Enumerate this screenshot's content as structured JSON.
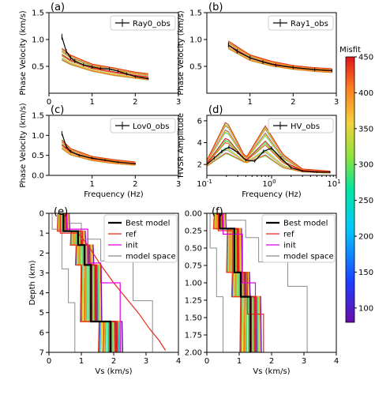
{
  "chart_data": [
    {
      "panel": "(a)",
      "type": "line",
      "xlabel": "",
      "ylabel": "Phase Velocity (km/s)",
      "xlim": [
        0,
        3
      ],
      "ylim": [
        0,
        1.5
      ],
      "xticks": [
        0,
        1,
        2,
        3
      ],
      "yticks": [
        0.5,
        1.0,
        1.5
      ],
      "legend": {
        "label": "Ray0_obs",
        "placement": "top-right"
      },
      "observed": {
        "name": "Ray0_obs",
        "x": [
          0.3,
          0.4,
          0.5,
          0.6,
          0.8,
          1.0,
          1.2,
          1.4,
          1.6,
          1.8,
          2.0,
          2.3
        ],
        "y": [
          1.05,
          0.78,
          0.66,
          0.6,
          0.53,
          0.49,
          0.46,
          0.45,
          0.41,
          0.36,
          0.31,
          0.27
        ]
      },
      "ensemble_range": {
        "x": [
          0.3,
          0.5,
          1.0,
          1.5,
          2.0,
          2.3
        ],
        "low": [
          0.6,
          0.52,
          0.4,
          0.32,
          0.27,
          0.24
        ],
        "high": [
          0.85,
          0.72,
          0.55,
          0.48,
          0.4,
          0.37
        ]
      }
    },
    {
      "panel": "(b)",
      "type": "line",
      "xlabel": "",
      "ylabel": "Phase Velocity (km/s)",
      "xlim": [
        0,
        3
      ],
      "ylim": [
        0,
        1.5
      ],
      "xticks": [
        1,
        2,
        3
      ],
      "yticks": [
        0.5,
        1.0,
        1.5
      ],
      "legend": {
        "label": "Ray1_obs",
        "placement": "top-right"
      },
      "observed": {
        "name": "Ray1_obs",
        "x": [
          0.5,
          0.7,
          1.0,
          1.3,
          1.6,
          2.0,
          2.5,
          2.9
        ],
        "y": [
          0.9,
          0.78,
          0.66,
          0.58,
          0.52,
          0.48,
          0.44,
          0.42
        ]
      },
      "ensemble_range": {
        "x": [
          0.5,
          1.0,
          1.5,
          2.0,
          2.5,
          2.9
        ],
        "low": [
          0.82,
          0.6,
          0.5,
          0.44,
          0.4,
          0.38
        ],
        "high": [
          0.98,
          0.72,
          0.6,
          0.52,
          0.48,
          0.46
        ]
      }
    },
    {
      "panel": "(c)",
      "type": "line",
      "xlabel": "Frequency (Hz)",
      "ylabel": "Phase Velocity (km/s)",
      "xlim": [
        0,
        3
      ],
      "ylim": [
        0,
        1.5
      ],
      "xticks": [
        1,
        2,
        3
      ],
      "yticks": [
        0.0,
        0.5,
        1.0,
        1.5
      ],
      "legend": {
        "label": "Lov0_obs",
        "placement": "top-right"
      },
      "observed": {
        "name": "Lov0_obs",
        "x": [
          0.3,
          0.4,
          0.5,
          0.7,
          1.0,
          1.3,
          1.6,
          2.0
        ],
        "y": [
          1.05,
          0.72,
          0.6,
          0.5,
          0.43,
          0.38,
          0.33,
          0.29
        ]
      },
      "ensemble_range": {
        "x": [
          0.3,
          0.5,
          1.0,
          1.5,
          2.0
        ],
        "low": [
          0.65,
          0.5,
          0.36,
          0.29,
          0.25
        ],
        "high": [
          0.9,
          0.68,
          0.48,
          0.4,
          0.34
        ]
      }
    },
    {
      "panel": "(d)",
      "type": "line",
      "xlabel": "Frequency (Hz)",
      "ylabel": "HVSR Amplitude",
      "xscale": "log",
      "xlim": [
        0.1,
        10
      ],
      "ylim": [
        1,
        6.5
      ],
      "xtick_labels": [
        "10^-1",
        "10^0",
        "10^1"
      ],
      "yticks": [
        2,
        4,
        6
      ],
      "legend": {
        "label": "HV_obs",
        "placement": "top-right"
      },
      "observed": {
        "name": "HV_obs",
        "x": [
          0.1,
          0.13,
          0.17,
          0.22,
          0.3,
          0.4,
          0.55,
          0.75,
          1.0,
          1.4,
          2.0,
          3.0,
          5.0,
          8.0
        ],
        "y": [
          2.0,
          2.6,
          3.2,
          3.6,
          3.1,
          2.4,
          2.3,
          3.2,
          3.5,
          2.6,
          1.7,
          1.4,
          1.3,
          1.3
        ]
      },
      "ensemble_range": {
        "x": [
          0.1,
          0.2,
          0.4,
          0.8,
          1.5,
          3.0,
          8.0
        ],
        "low": [
          1.8,
          2.8,
          2.1,
          2.6,
          1.6,
          1.3,
          1.2
        ],
        "high": [
          2.4,
          6.2,
          2.6,
          5.7,
          3.0,
          1.6,
          1.4
        ]
      }
    },
    {
      "panel": "(e)",
      "type": "line",
      "xlabel": "Vs (km/s)",
      "ylabel": "Depth (km)",
      "xlim": [
        0,
        4
      ],
      "ylim": [
        7,
        0
      ],
      "xticks": [
        0,
        1,
        2,
        3,
        4
      ],
      "yticks": [
        0,
        1,
        2,
        3,
        4,
        5,
        6,
        7
      ],
      "legend": {
        "entries": [
          "Best model",
          "ref",
          "init",
          "model space"
        ],
        "placement": "top-right"
      },
      "best_model": {
        "name": "Best model",
        "vs": [
          0.45,
          0.45,
          0.9,
          0.9,
          1.1,
          1.1,
          1.3,
          1.3,
          1.9,
          1.9
        ],
        "depth": [
          0,
          0.9,
          0.9,
          1.6,
          1.6,
          2.6,
          2.6,
          5.45,
          5.45,
          7
        ]
      },
      "ref": {
        "name": "ref",
        "vs": [
          0.35,
          0.35,
          0.9,
          1.2,
          1.6,
          2.0,
          2.4,
          2.8,
          3.1,
          3.4,
          3.6
        ],
        "depth": [
          0,
          1.0,
          1.0,
          1.6,
          2.6,
          3.5,
          4.3,
          5.1,
          5.8,
          6.4,
          6.9
        ]
      },
      "init": {
        "name": "init",
        "vs": [
          0.55,
          0.55,
          1.2,
          1.2,
          1.6,
          1.6,
          2.2,
          2.2
        ],
        "depth": [
          0,
          0.8,
          0.8,
          2.5,
          2.5,
          3.5,
          3.5,
          7
        ]
      },
      "model_space_low": {
        "vs": [
          0.1,
          0.1,
          0.4,
          0.4,
          0.6,
          0.6,
          0.8,
          0.8
        ],
        "depth": [
          0,
          0.8,
          0.8,
          2.8,
          2.8,
          4.5,
          4.5,
          7
        ]
      },
      "model_space_high": {
        "vs": [
          0.55,
          0.55,
          1.0,
          1.0,
          1.6,
          1.6,
          2.6,
          2.6,
          3.2,
          3.2
        ],
        "depth": [
          0,
          0.5,
          0.5,
          1.3,
          1.3,
          2.4,
          2.4,
          4.4,
          4.4,
          7
        ]
      }
    },
    {
      "panel": "(f)",
      "type": "line",
      "xlabel": "Vs (km/s)",
      "ylabel": "",
      "xlim": [
        0,
        4
      ],
      "ylim": [
        2.0,
        0
      ],
      "xticks": [
        0,
        1,
        2,
        3,
        4
      ],
      "yticks": [
        0.0,
        0.25,
        0.5,
        0.75,
        1.0,
        1.25,
        1.5,
        1.75,
        2.0
      ],
      "legend": {
        "entries": [
          "Best model",
          "ref",
          "init",
          "model space"
        ],
        "placement": "top-right"
      },
      "best_model": {
        "name": "Best model",
        "vs": [
          0.4,
          0.4,
          0.85,
          0.85,
          1.05,
          1.05,
          1.35,
          1.35
        ],
        "depth": [
          0,
          0.22,
          0.22,
          0.85,
          0.85,
          1.2,
          1.2,
          2.0
        ]
      },
      "ref": {
        "name": "ref",
        "vs": [
          0.35,
          0.35,
          0.8,
          0.8,
          1.25,
          1.25,
          1.75,
          1.75
        ],
        "depth": [
          0,
          0.25,
          0.25,
          0.85,
          0.85,
          1.45,
          1.45,
          2.0
        ]
      },
      "init": {
        "name": "init",
        "vs": [
          0.5,
          0.5,
          1.1,
          1.1,
          1.5,
          1.5
        ],
        "depth": [
          0,
          0.3,
          0.3,
          1.0,
          1.0,
          2.0
        ]
      },
      "model_space_low": {
        "vs": [
          0.1,
          0.1,
          0.3,
          0.3,
          0.5,
          0.5
        ],
        "depth": [
          0,
          0.5,
          0.5,
          1.2,
          1.2,
          2.0
        ]
      },
      "model_space_high": {
        "vs": [
          0.6,
          0.6,
          1.2,
          1.2,
          1.6,
          1.6,
          2.5,
          2.5,
          3.1,
          3.1
        ],
        "depth": [
          0,
          0.1,
          0.1,
          0.35,
          0.35,
          0.7,
          0.7,
          1.05,
          1.05,
          2.0
        ]
      }
    }
  ],
  "colorbar": {
    "label": "Misfit",
    "range": [
      80,
      450
    ],
    "ticks": [
      100,
      150,
      200,
      250,
      300,
      350,
      400,
      450
    ],
    "colors": [
      "#6a0dad",
      "#1f3cff",
      "#00c8ff",
      "#00e6a0",
      "#8be33c",
      "#f2d23a",
      "#ff7f1e",
      "#e0141e"
    ]
  },
  "styles": {
    "observed": "#000000",
    "best": "#000000",
    "ref": "#e8281e",
    "init": "#e600e6",
    "space": "#8c8c8c"
  }
}
